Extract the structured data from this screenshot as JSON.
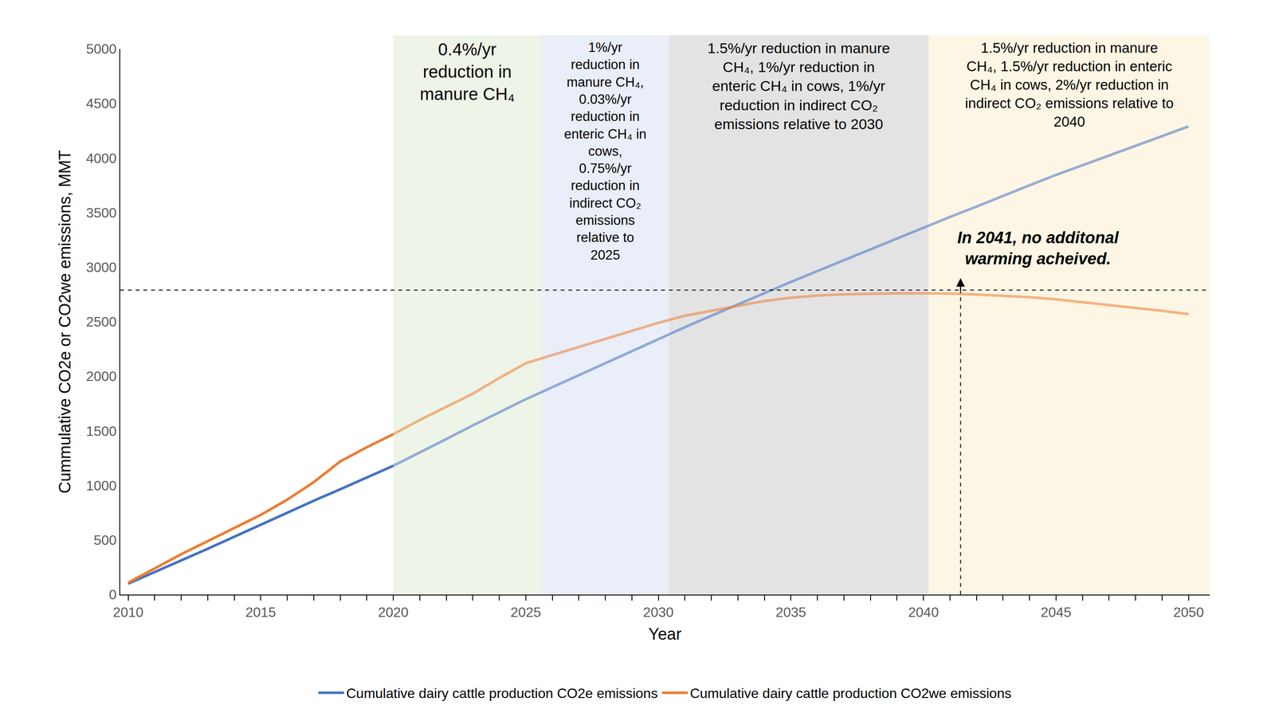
{
  "chart_data": {
    "type": "line",
    "x": [
      2010,
      2011,
      2012,
      2013,
      2014,
      2015,
      2016,
      2017,
      2018,
      2019,
      2020,
      2021,
      2022,
      2023,
      2024,
      2025,
      2026,
      2027,
      2028,
      2029,
      2030,
      2031,
      2032,
      2033,
      2034,
      2035,
      2036,
      2037,
      2038,
      2039,
      2040,
      2041,
      2042,
      2043,
      2044,
      2045,
      2046,
      2047,
      2048,
      2049,
      2050
    ],
    "xlim": [
      2009.7,
      2050.8
    ],
    "xticks": [
      2010,
      2015,
      2020,
      2025,
      2030,
      2035,
      2040,
      2045,
      2050
    ],
    "ylim": [
      0,
      5000
    ],
    "yticks": [
      0,
      500,
      1000,
      1500,
      2000,
      2500,
      3000,
      3500,
      4000,
      4500,
      5000
    ],
    "x_label": "Year",
    "y_label": "Cummulative CO2e or CO2we emissions, MMT",
    "grid": false,
    "legend": "bottom",
    "series": [
      {
        "name": "Cumulative dairy cattle production CO2e emissions",
        "color": "#4472c4",
        "values": [
          100,
          205,
          310,
          420,
          530,
          640,
          755,
          860,
          965,
          1075,
          1180,
          1300,
          1425,
          1550,
          1670,
          1790,
          1900,
          2010,
          2125,
          2235,
          2345,
          2450,
          2555,
          2660,
          2760,
          2865,
          2965,
          3065,
          3165,
          3265,
          3365,
          3460,
          3555,
          3655,
          3750,
          3845,
          3935,
          4025,
          4115,
          4205,
          4290
        ]
      },
      {
        "name": "Cumulative dairy cattle production CO2we emissions",
        "color": "#ed7d31",
        "values": [
          110,
          240,
          370,
          490,
          610,
          730,
          870,
          1030,
          1220,
          1350,
          1470,
          1600,
          1720,
          1840,
          1985,
          2120,
          2195,
          2270,
          2345,
          2420,
          2490,
          2555,
          2600,
          2650,
          2690,
          2720,
          2740,
          2752,
          2757,
          2760,
          2760,
          2758,
          2750,
          2740,
          2725,
          2705,
          2680,
          2655,
          2630,
          2600,
          2570
        ]
      }
    ],
    "periods": [
      {
        "start": 2020,
        "end": 2025.6,
        "color": "#eef4e7",
        "label": [
          "0.4%/yr",
          "reduction in",
          "manure CH₄"
        ]
      },
      {
        "start": 2025.6,
        "end": 2030.4,
        "color": "#e9eef8",
        "label": [
          "1%/yr",
          "reduction in",
          "manure CH₄,",
          "0.03%/yr",
          "reduction in",
          "enteric CH₄ in",
          "cows,",
          "0.75%/yr",
          "reduction in",
          "indirect CO₂",
          "emissions",
          "relative to",
          "2025"
        ]
      },
      {
        "start": 2030.4,
        "end": 2040.2,
        "color": "#e3e3e3",
        "label": [
          "1.5%/yr reduction in manure",
          "CH₄, 1%/yr reduction in",
          "enteric CH₄ in cows, 1%/yr",
          "reduction in indirect CO₂",
          "emissions relative to 2030"
        ]
      },
      {
        "start": 2040.2,
        "end": 2050.8,
        "color": "#fdf6e4",
        "label": [
          "1.5%/yr reduction in manure",
          "CH₄, 1.5%/yr reduction in enteric",
          "CH₄ in cows, 2%/yr reduction in",
          "indirect CO₂ emissions relative to",
          "2040"
        ]
      }
    ],
    "hline": 2790,
    "vline": {
      "x": 2041.4,
      "to": 2900
    },
    "note": [
      "In 2041, no additonal",
      "warming acheived."
    ]
  }
}
